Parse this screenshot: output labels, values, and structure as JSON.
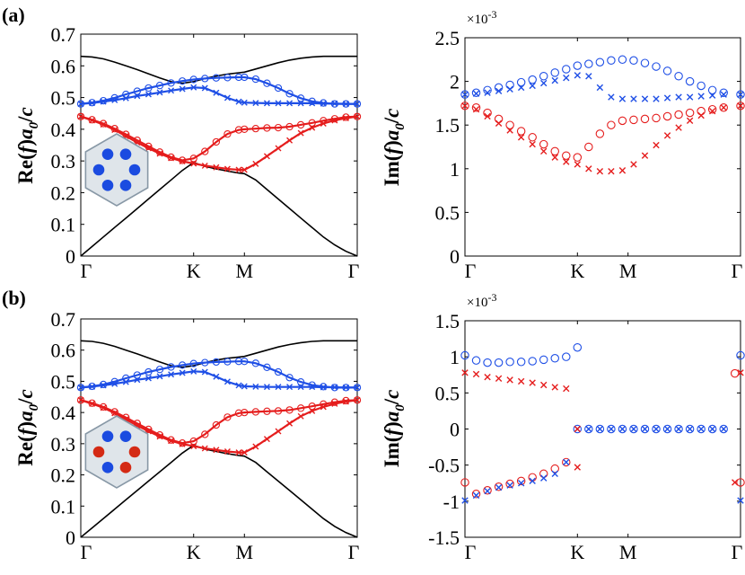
{
  "figure_labels": {
    "a": "(a)",
    "b": "(b)"
  },
  "colors": {
    "blue": "#1f4fe6",
    "red": "#e51d1d",
    "black": "#000000",
    "inset_red": "#d42a14",
    "inset_blue": "#1b4be0",
    "inset_fill": "#dfe5ea",
    "inset_stroke": "#8898a6"
  },
  "insets": {
    "a": {
      "dot_colors": [
        "#1b4be0",
        "#1b4be0",
        "#1b4be0",
        "#1b4be0",
        "#1b4be0",
        "#1b4be0"
      ]
    },
    "b": {
      "dot_colors": [
        "#1b4be0",
        "#1b4be0",
        "#d42a14",
        "#d42a14",
        "#1b4be0",
        "#d42a14"
      ]
    }
  },
  "chart_data": [
    {
      "id": "a-left",
      "type": "line",
      "panel_label": "(a)",
      "ylabel": "Re(f)a0/c",
      "xlabel": "",
      "xticks": [
        "Γ",
        "K",
        "M",
        "Γ"
      ],
      "xtick_pos": [
        0,
        1,
        1.45,
        2.45
      ],
      "xlim": [
        0,
        2.45
      ],
      "ylim": [
        0,
        0.7
      ],
      "yticks": [
        "0",
        "0.1",
        "0.2",
        "0.3",
        "0.4",
        "0.5",
        "0.6",
        "0.7"
      ],
      "x": [
        0,
        0.1,
        0.2,
        0.3,
        0.4,
        0.5,
        0.6,
        0.7,
        0.8,
        0.9,
        1.0,
        1.1,
        1.2,
        1.3,
        1.4,
        1.45,
        1.55,
        1.65,
        1.75,
        1.85,
        1.95,
        2.05,
        2.15,
        2.25,
        2.35,
        2.45
      ],
      "series": [
        {
          "name": "light-cone-lower",
          "color": "#000000",
          "marker": "none",
          "values": [
            0,
            0.03,
            0.06,
            0.09,
            0.12,
            0.15,
            0.18,
            0.21,
            0.24,
            0.27,
            0.295,
            0.283,
            0.275,
            0.268,
            0.262,
            0.26,
            0.24,
            0.21,
            0.18,
            0.15,
            0.12,
            0.09,
            0.06,
            0.035,
            0.015,
            0
          ]
        },
        {
          "name": "light-cone-upper",
          "color": "#000000",
          "marker": "none",
          "values": [
            0.63,
            0.628,
            0.622,
            0.612,
            0.6,
            0.588,
            0.575,
            0.562,
            0.55,
            0.545,
            0.55,
            0.56,
            0.568,
            0.574,
            0.578,
            0.58,
            0.59,
            0.6,
            0.61,
            0.618,
            0.624,
            0.628,
            0.63,
            0.63,
            0.63,
            0.63
          ]
        },
        {
          "name": "blue-circle",
          "color": "#1f4fe6",
          "marker": "circle",
          "values": [
            0.48,
            0.484,
            0.49,
            0.499,
            0.51,
            0.52,
            0.53,
            0.538,
            0.546,
            0.552,
            0.557,
            0.56,
            0.562,
            0.563,
            0.564,
            0.564,
            0.558,
            0.545,
            0.53,
            0.512,
            0.498,
            0.488,
            0.483,
            0.48,
            0.48,
            0.48
          ]
        },
        {
          "name": "blue-cross",
          "color": "#1f4fe6",
          "marker": "cross",
          "values": [
            0.48,
            0.483,
            0.487,
            0.492,
            0.498,
            0.505,
            0.51,
            0.516,
            0.522,
            0.527,
            0.532,
            0.53,
            0.515,
            0.499,
            0.487,
            0.484,
            0.483,
            0.482,
            0.482,
            0.482,
            0.482,
            0.482,
            0.481,
            0.481,
            0.48,
            0.48
          ]
        },
        {
          "name": "red-circle",
          "color": "#e51d1d",
          "marker": "circle",
          "values": [
            0.44,
            0.43,
            0.418,
            0.402,
            0.384,
            0.365,
            0.346,
            0.328,
            0.312,
            0.302,
            0.308,
            0.33,
            0.36,
            0.385,
            0.398,
            0.4,
            0.402,
            0.404,
            0.405,
            0.408,
            0.414,
            0.42,
            0.427,
            0.433,
            0.438,
            0.44
          ]
        },
        {
          "name": "red-cross",
          "color": "#e51d1d",
          "marker": "cross",
          "values": [
            0.44,
            0.428,
            0.415,
            0.398,
            0.378,
            0.358,
            0.34,
            0.323,
            0.309,
            0.299,
            0.292,
            0.285,
            0.28,
            0.275,
            0.272,
            0.272,
            0.291,
            0.315,
            0.34,
            0.365,
            0.388,
            0.405,
            0.418,
            0.428,
            0.435,
            0.44
          ]
        }
      ]
    },
    {
      "id": "a-right",
      "type": "scatter",
      "ylabel": "Im(f)a0/c",
      "xlabel": "",
      "multiplier": "×10",
      "multiplier_exp": "-3",
      "xticks": [
        "Γ",
        "K",
        "M",
        "Γ"
      ],
      "xtick_pos": [
        0,
        1,
        1.45,
        2.45
      ],
      "xlim": [
        0,
        2.45
      ],
      "ylim": [
        0,
        2.5
      ],
      "yticks": [
        "0",
        "0.5",
        "1",
        "1.5",
        "2",
        "2.5"
      ],
      "x": [
        0,
        0.1,
        0.2,
        0.3,
        0.4,
        0.5,
        0.6,
        0.7,
        0.8,
        0.9,
        1.0,
        1.1,
        1.2,
        1.3,
        1.4,
        1.5,
        1.6,
        1.7,
        1.8,
        1.9,
        2.0,
        2.1,
        2.2,
        2.3,
        2.45
      ],
      "series": [
        {
          "name": "blue-circle",
          "color": "#1f4fe6",
          "marker": "circle",
          "values": [
            1.85,
            1.87,
            1.9,
            1.93,
            1.96,
            1.99,
            2.02,
            2.06,
            2.1,
            2.14,
            2.18,
            2.2,
            2.22,
            2.24,
            2.25,
            2.24,
            2.21,
            2.17,
            2.12,
            2.06,
            2.0,
            1.95,
            1.9,
            1.87,
            1.85
          ]
        },
        {
          "name": "blue-cross",
          "color": "#1f4fe6",
          "marker": "cross",
          "values": [
            1.85,
            1.86,
            1.87,
            1.89,
            1.91,
            1.93,
            1.95,
            1.98,
            2.01,
            2.04,
            2.07,
            2.06,
            1.93,
            1.82,
            1.8,
            1.8,
            1.8,
            1.8,
            1.81,
            1.82,
            1.82,
            1.83,
            1.84,
            1.85,
            1.85
          ]
        },
        {
          "name": "red-circle",
          "color": "#e51d1d",
          "marker": "circle",
          "values": [
            1.72,
            1.7,
            1.64,
            1.57,
            1.5,
            1.43,
            1.36,
            1.28,
            1.2,
            1.15,
            1.13,
            1.25,
            1.4,
            1.5,
            1.55,
            1.56,
            1.57,
            1.58,
            1.6,
            1.62,
            1.64,
            1.66,
            1.68,
            1.7,
            1.72
          ]
        },
        {
          "name": "red-cross",
          "color": "#e51d1d",
          "marker": "cross",
          "values": [
            1.72,
            1.68,
            1.6,
            1.52,
            1.44,
            1.36,
            1.28,
            1.2,
            1.13,
            1.08,
            1.05,
            1.0,
            0.97,
            0.97,
            0.98,
            1.05,
            1.15,
            1.27,
            1.38,
            1.47,
            1.55,
            1.61,
            1.66,
            1.7,
            1.72
          ]
        }
      ]
    },
    {
      "id": "b-left",
      "type": "line",
      "panel_label": "(b)",
      "ylabel": "Re(f)a0/c",
      "xlabel": "",
      "xticks": [
        "Γ",
        "K",
        "M",
        "Γ"
      ],
      "xtick_pos": [
        0,
        1,
        1.45,
        2.45
      ],
      "xlim": [
        0,
        2.45
      ],
      "ylim": [
        0,
        0.7
      ],
      "yticks": [
        "0",
        "0.1",
        "0.2",
        "0.3",
        "0.4",
        "0.5",
        "0.6",
        "0.7"
      ],
      "x": [
        0,
        0.1,
        0.2,
        0.3,
        0.4,
        0.5,
        0.6,
        0.7,
        0.8,
        0.9,
        1.0,
        1.1,
        1.2,
        1.3,
        1.4,
        1.45,
        1.55,
        1.65,
        1.75,
        1.85,
        1.95,
        2.05,
        2.15,
        2.25,
        2.35,
        2.45
      ],
      "series": [
        {
          "name": "light-cone-lower",
          "color": "#000000",
          "marker": "none",
          "values": [
            0,
            0.03,
            0.06,
            0.09,
            0.12,
            0.15,
            0.18,
            0.21,
            0.24,
            0.27,
            0.295,
            0.283,
            0.275,
            0.268,
            0.262,
            0.26,
            0.24,
            0.21,
            0.18,
            0.15,
            0.12,
            0.09,
            0.06,
            0.035,
            0.015,
            0
          ]
        },
        {
          "name": "light-cone-upper",
          "color": "#000000",
          "marker": "none",
          "values": [
            0.63,
            0.628,
            0.622,
            0.612,
            0.6,
            0.588,
            0.575,
            0.562,
            0.55,
            0.545,
            0.55,
            0.56,
            0.568,
            0.574,
            0.578,
            0.58,
            0.59,
            0.6,
            0.61,
            0.618,
            0.624,
            0.628,
            0.63,
            0.63,
            0.63,
            0.63
          ]
        },
        {
          "name": "blue-circle",
          "color": "#1f4fe6",
          "marker": "circle",
          "values": [
            0.48,
            0.484,
            0.49,
            0.499,
            0.51,
            0.52,
            0.53,
            0.538,
            0.546,
            0.552,
            0.557,
            0.56,
            0.562,
            0.563,
            0.564,
            0.564,
            0.558,
            0.545,
            0.53,
            0.512,
            0.498,
            0.488,
            0.483,
            0.48,
            0.48,
            0.48
          ]
        },
        {
          "name": "blue-cross",
          "color": "#1f4fe6",
          "marker": "cross",
          "values": [
            0.48,
            0.483,
            0.487,
            0.492,
            0.498,
            0.505,
            0.51,
            0.516,
            0.522,
            0.527,
            0.532,
            0.53,
            0.515,
            0.499,
            0.487,
            0.484,
            0.483,
            0.482,
            0.482,
            0.482,
            0.482,
            0.482,
            0.481,
            0.481,
            0.48,
            0.48
          ]
        },
        {
          "name": "red-circle",
          "color": "#e51d1d",
          "marker": "circle",
          "values": [
            0.44,
            0.43,
            0.418,
            0.402,
            0.384,
            0.365,
            0.346,
            0.328,
            0.312,
            0.302,
            0.308,
            0.33,
            0.36,
            0.385,
            0.398,
            0.4,
            0.402,
            0.404,
            0.405,
            0.408,
            0.414,
            0.42,
            0.427,
            0.433,
            0.438,
            0.44
          ]
        },
        {
          "name": "red-cross",
          "color": "#e51d1d",
          "marker": "cross",
          "values": [
            0.44,
            0.428,
            0.415,
            0.398,
            0.378,
            0.358,
            0.34,
            0.323,
            0.309,
            0.299,
            0.292,
            0.285,
            0.28,
            0.275,
            0.272,
            0.272,
            0.291,
            0.315,
            0.34,
            0.365,
            0.388,
            0.405,
            0.418,
            0.428,
            0.435,
            0.44
          ]
        }
      ]
    },
    {
      "id": "b-right",
      "type": "scatter",
      "ylabel": "Im(f)a0/c",
      "xlabel": "",
      "multiplier": "×10",
      "multiplier_exp": "-3",
      "xticks": [
        "Γ",
        "K",
        "M",
        "Γ"
      ],
      "xtick_pos": [
        0,
        1,
        1.45,
        2.45
      ],
      "xlim": [
        0,
        2.45
      ],
      "ylim": [
        -1.5,
        1.5
      ],
      "yticks": [
        "-1.5",
        "-1",
        "-0.5",
        "0",
        "0.5",
        "1",
        "1.5"
      ],
      "series": [
        {
          "name": "blue-circle-upper",
          "color": "#1f4fe6",
          "marker": "circle",
          "x": [
            0,
            0.1,
            0.2,
            0.3,
            0.4,
            0.5,
            0.6,
            0.7,
            0.8,
            0.9,
            1.0
          ],
          "values": [
            1.02,
            0.95,
            0.92,
            0.92,
            0.93,
            0.93,
            0.94,
            0.96,
            0.98,
            1.0,
            1.13
          ]
        },
        {
          "name": "red-cross-upper",
          "color": "#e51d1d",
          "marker": "cross",
          "x": [
            0,
            0.1,
            0.2,
            0.3,
            0.4,
            0.5,
            0.6,
            0.7,
            0.8,
            0.9
          ],
          "values": [
            0.78,
            0.76,
            0.72,
            0.7,
            0.68,
            0.66,
            0.64,
            0.61,
            0.58,
            0.56
          ]
        },
        {
          "name": "red-circle-lower",
          "color": "#e51d1d",
          "marker": "circle",
          "x": [
            0,
            0.1,
            0.2,
            0.3,
            0.4,
            0.5,
            0.6,
            0.7,
            0.8,
            0.9
          ],
          "values": [
            -0.74,
            -0.9,
            -0.85,
            -0.8,
            -0.76,
            -0.72,
            -0.67,
            -0.62,
            -0.55,
            -0.46
          ]
        },
        {
          "name": "blue-cross-lower",
          "color": "#1f4fe6",
          "marker": "cross",
          "x": [
            0,
            0.1,
            0.2,
            0.3,
            0.4,
            0.5,
            0.6,
            0.7,
            0.8,
            0.9
          ],
          "values": [
            -0.99,
            -0.92,
            -0.86,
            -0.81,
            -0.78,
            -0.75,
            -0.72,
            -0.68,
            -0.62,
            -0.46
          ]
        },
        {
          "name": "red-cross-lower",
          "color": "#e51d1d",
          "marker": "cross",
          "x": [
            1.0
          ],
          "values": [
            -0.53
          ]
        },
        {
          "name": "blue-circle-zero",
          "color": "#1f4fe6",
          "marker": "circle",
          "x": [
            1.0,
            1.1,
            1.2,
            1.3,
            1.4,
            1.5,
            1.6,
            1.7,
            1.8,
            1.9,
            2.0,
            2.1,
            2.2,
            2.3
          ],
          "values": [
            0,
            0,
            0,
            0,
            0,
            0,
            0,
            0,
            0,
            0,
            0,
            0,
            0,
            0
          ]
        },
        {
          "name": "blue-cross-zero",
          "color": "#1f4fe6",
          "marker": "cross",
          "x": [
            1.0,
            1.1,
            1.2,
            1.3,
            1.4,
            1.5,
            1.6,
            1.7,
            1.8,
            1.9,
            2.0,
            2.1,
            2.2,
            2.3
          ],
          "values": [
            0,
            0,
            0,
            0,
            0,
            0,
            0,
            0,
            0,
            0,
            0,
            0,
            0,
            0
          ]
        },
        {
          "name": "red-cross-zero",
          "color": "#e51d1d",
          "marker": "cross",
          "x": [
            1.0
          ],
          "values": [
            0
          ]
        },
        {
          "name": "gamma-blue-circle",
          "color": "#1f4fe6",
          "marker": "circle",
          "x": [
            2.45
          ],
          "values": [
            1.02
          ]
        },
        {
          "name": "gamma-red-circle",
          "color": "#e51d1d",
          "marker": "circle",
          "x": [
            2.4,
            2.45
          ],
          "values": [
            0.77,
            -0.74
          ]
        },
        {
          "name": "gamma-red-cross",
          "color": "#e51d1d",
          "marker": "cross",
          "x": [
            2.4,
            2.45
          ],
          "values": [
            -0.74,
            0.78
          ]
        },
        {
          "name": "gamma-blue-cross",
          "color": "#1f4fe6",
          "marker": "cross",
          "x": [
            2.45
          ],
          "values": [
            -0.99
          ]
        }
      ]
    }
  ]
}
